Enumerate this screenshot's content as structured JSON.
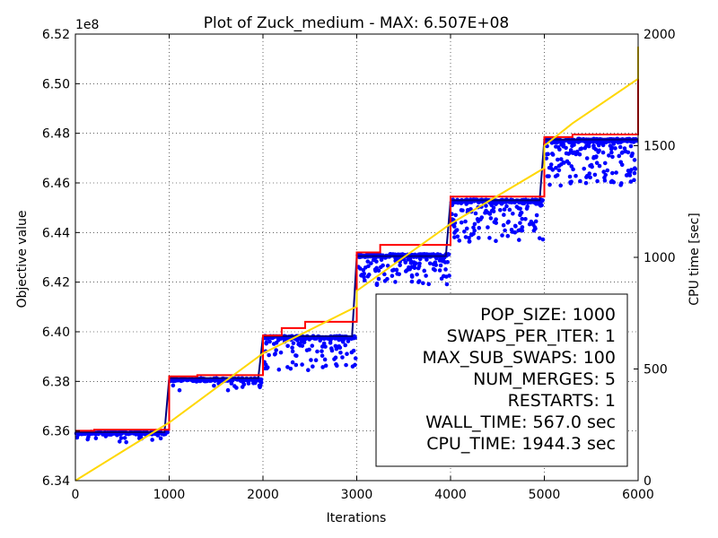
{
  "chart_data": {
    "type": "scatter",
    "title": "Plot of Zuck_medium - MAX: 6.507E+08",
    "xlabel": "Iterations",
    "ylabel": "Objective value",
    "y2label": "CPU time [sec]",
    "y_offset_text": "1e8",
    "xlim": [
      0,
      6000
    ],
    "ylim": [
      6.34,
      6.52
    ],
    "y2lim": [
      0,
      2000
    ],
    "xticks": [
      "0",
      "1000",
      "2000",
      "3000",
      "4000",
      "5000",
      "6000"
    ],
    "yticks": [
      "6.34",
      "6.36",
      "6.38",
      "6.40",
      "6.42",
      "6.44",
      "6.46",
      "6.48",
      "6.50",
      "6.52"
    ],
    "y2ticks": [
      "0",
      "500",
      "1000",
      "1500",
      "2000"
    ],
    "grid": true,
    "colors": {
      "population": "#0000ff",
      "best": "#ff0000",
      "cpu_time": "#ffd700",
      "mean": "#000080"
    },
    "best_line": {
      "x": [
        0,
        200,
        200,
        1000,
        1000,
        1300,
        1300,
        2000,
        2000,
        2200,
        2200,
        2450,
        2450,
        3000,
        3000,
        3250,
        3250,
        4000,
        4000,
        5000,
        5000,
        5300,
        5300,
        6000,
        6000
      ],
      "y": [
        6.3601,
        6.3601,
        6.3605,
        6.3605,
        6.382,
        6.382,
        6.3825,
        6.3825,
        6.3985,
        6.3985,
        6.4015,
        6.4015,
        6.404,
        6.404,
        6.432,
        6.432,
        6.435,
        6.435,
        6.4545,
        6.4545,
        6.4785,
        6.4785,
        6.4795,
        6.4795,
        6.507
      ]
    },
    "cpu_time_line": {
      "x": [
        0,
        1000,
        2000,
        3000,
        3000,
        4000,
        5000,
        5000,
        5300,
        6000,
        6000
      ],
      "y": [
        0,
        260,
        570,
        780,
        850,
        1150,
        1400,
        1500,
        1600,
        1800,
        1944
      ]
    },
    "mean_line": {
      "x": [
        0,
        950,
        1000,
        1950,
        2000,
        2950,
        3000,
        3950,
        4000,
        4950,
        5000,
        5950,
        6000
      ],
      "y": [
        6.3595,
        6.3595,
        6.3813,
        6.3813,
        6.3982,
        6.3982,
        6.4305,
        6.4305,
        6.453,
        6.453,
        6.4775,
        6.4775,
        6.4775
      ]
    },
    "populations": [
      {
        "x_range": [
          0,
          1000
        ],
        "ref": 6.36,
        "spread": 0.0035,
        "outlier_count": 25
      },
      {
        "x_range": [
          1000,
          2000
        ],
        "ref": 6.3815,
        "spread": 0.004,
        "outlier_count": 25
      },
      {
        "x_range": [
          2000,
          3000
        ],
        "ref": 6.3985,
        "spread": 0.013,
        "outlier_count": 90
      },
      {
        "x_range": [
          3000,
          4000
        ],
        "ref": 6.4315,
        "spread": 0.012,
        "outlier_count": 120
      },
      {
        "x_range": [
          4000,
          5000
        ],
        "ref": 6.4535,
        "spread": 0.016,
        "outlier_count": 140
      },
      {
        "x_range": [
          5000,
          6000
        ],
        "ref": 6.478,
        "spread": 0.018,
        "outlier_count": 170
      }
    ],
    "legend_position": "lower-right",
    "legend_lines": [
      "POP_SIZE: 1000",
      "SWAPS_PER_ITER: 1",
      "MAX_SUB_SWAPS: 100",
      "NUM_MERGES: 5",
      "RESTARTS: 1",
      "WALL_TIME: 567.0 sec",
      "CPU_TIME: 1944.3 sec"
    ]
  }
}
